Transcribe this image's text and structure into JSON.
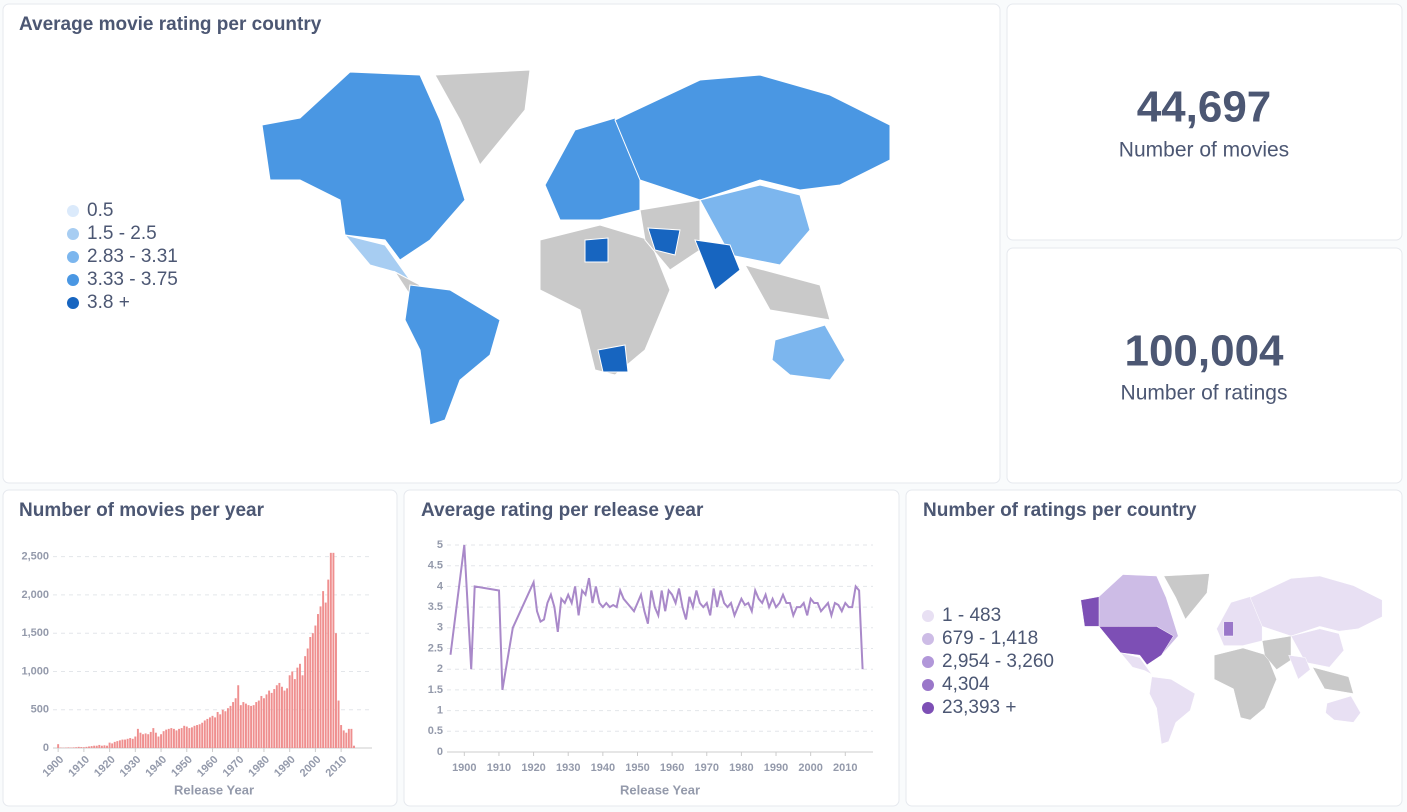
{
  "map_card": {
    "title": "Average movie rating per country",
    "legend": [
      {
        "label": "0.5",
        "color": "#dbeafb"
      },
      {
        "label": "1.5 - 2.5",
        "color": "#a7cdf2"
      },
      {
        "label": "2.83 - 3.31",
        "color": "#7cb6ee"
      },
      {
        "label": "3.33 - 3.75",
        "color": "#4a97e3"
      },
      {
        "label": "3.8 +",
        "color": "#1765c0"
      }
    ]
  },
  "stats": [
    {
      "value": "44,697",
      "label": "Number of movies"
    },
    {
      "value": "100,004",
      "label": "Number of ratings"
    }
  ],
  "chart_data": [
    {
      "type": "bar",
      "title": "Number of movies per year",
      "x_label": "Release Year",
      "color": "#ef8f8f",
      "grid": true,
      "x": [
        1900,
        1901,
        1902,
        1903,
        1904,
        1905,
        1906,
        1907,
        1908,
        1909,
        1910,
        1911,
        1912,
        1913,
        1914,
        1915,
        1916,
        1917,
        1918,
        1919,
        1920,
        1921,
        1922,
        1923,
        1924,
        1925,
        1926,
        1927,
        1928,
        1929,
        1930,
        1931,
        1932,
        1933,
        1934,
        1935,
        1936,
        1937,
        1938,
        1939,
        1940,
        1941,
        1942,
        1943,
        1944,
        1945,
        1946,
        1947,
        1948,
        1949,
        1950,
        1951,
        1952,
        1953,
        1954,
        1955,
        1956,
        1957,
        1958,
        1959,
        1960,
        1961,
        1962,
        1963,
        1964,
        1965,
        1966,
        1967,
        1968,
        1969,
        1970,
        1971,
        1972,
        1973,
        1974,
        1975,
        1976,
        1977,
        1978,
        1979,
        1980,
        1981,
        1982,
        1983,
        1984,
        1985,
        1986,
        1987,
        1988,
        1989,
        1990,
        1991,
        1992,
        1993,
        1994,
        1995,
        1996,
        1997,
        1998,
        1999,
        2000,
        2001,
        2002,
        2003,
        2004,
        2005,
        2006,
        2007,
        2008,
        2009,
        2010,
        2011,
        2012,
        2013,
        2014,
        2015
      ],
      "values": [
        50,
        5,
        3,
        5,
        8,
        5,
        8,
        10,
        15,
        12,
        10,
        15,
        20,
        25,
        30,
        30,
        40,
        30,
        35,
        30,
        70,
        60,
        80,
        90,
        100,
        110,
        110,
        120,
        130,
        120,
        150,
        250,
        200,
        180,
        190,
        180,
        210,
        260,
        200,
        150,
        180,
        220,
        240,
        250,
        260,
        250,
        230,
        250,
        260,
        290,
        280,
        260,
        270,
        290,
        300,
        310,
        330,
        360,
        380,
        400,
        420,
        400,
        470,
        440,
        500,
        480,
        520,
        550,
        600,
        650,
        820,
        560,
        600,
        580,
        560,
        550,
        560,
        600,
        620,
        680,
        650,
        700,
        750,
        720,
        770,
        820,
        850,
        800,
        750,
        780,
        950,
        1000,
        900,
        1050,
        1100,
        950,
        1200,
        1300,
        1450,
        1500,
        1600,
        1750,
        1850,
        2050,
        1900,
        2200,
        2550,
        2550,
        1500,
        620,
        300,
        230,
        200,
        250,
        250,
        30
      ],
      "xlim": [
        1898,
        2022
      ],
      "ylim": [
        0,
        2600
      ],
      "xticks": [
        1900,
        1910,
        1920,
        1930,
        1940,
        1950,
        1960,
        1970,
        1980,
        1990,
        2000,
        2010
      ],
      "yticks": [
        0,
        500,
        {
          "value": 1000,
          "label": "1,000"
        },
        {
          "value": 1500,
          "label": "1,500"
        },
        {
          "value": 2000,
          "label": "2,000"
        },
        {
          "value": 2500,
          "label": "2,500"
        }
      ]
    },
    {
      "type": "line",
      "title": "Average rating per release year",
      "x_label": "Release Year",
      "color": "#a989c9",
      "grid": true,
      "x": [
        1896,
        1900,
        1902,
        1903,
        1910,
        1911,
        1914,
        1920,
        1921,
        1922,
        1923,
        1924,
        1925,
        1926,
        1927,
        1928,
        1929,
        1930,
        1931,
        1932,
        1933,
        1934,
        1935,
        1936,
        1937,
        1938,
        1939,
        1940,
        1941,
        1942,
        1943,
        1944,
        1945,
        1946,
        1947,
        1948,
        1949,
        1950,
        1951,
        1952,
        1953,
        1954,
        1955,
        1956,
        1957,
        1958,
        1959,
        1960,
        1961,
        1962,
        1963,
        1964,
        1965,
        1966,
        1967,
        1968,
        1969,
        1970,
        1971,
        1972,
        1973,
        1974,
        1975,
        1976,
        1977,
        1978,
        1979,
        1980,
        1981,
        1982,
        1983,
        1984,
        1985,
        1986,
        1987,
        1988,
        1989,
        1990,
        1991,
        1992,
        1993,
        1994,
        1995,
        1996,
        1997,
        1998,
        1999,
        2000,
        2001,
        2002,
        2003,
        2004,
        2005,
        2006,
        2007,
        2008,
        2009,
        2010,
        2011,
        2012,
        2013,
        2014,
        2015
      ],
      "values": [
        2.35,
        5,
        2.0,
        4.0,
        3.9,
        1.5,
        3.0,
        4.1,
        3.4,
        3.15,
        3.2,
        3.6,
        3.8,
        3.5,
        2.9,
        3.7,
        3.6,
        3.8,
        3.6,
        4.0,
        3.3,
        3.9,
        3.8,
        4.2,
        3.6,
        4.0,
        3.6,
        3.5,
        3.6,
        3.5,
        3.55,
        3.5,
        3.9,
        3.7,
        3.6,
        3.5,
        3.4,
        3.6,
        3.8,
        3.4,
        3.1,
        3.9,
        3.5,
        3.3,
        3.9,
        3.4,
        3.9,
        3.8,
        3.6,
        3.95,
        3.5,
        3.2,
        3.75,
        3.5,
        3.9,
        3.6,
        3.5,
        3.6,
        3.3,
        3.95,
        3.5,
        3.9,
        3.6,
        3.5,
        3.6,
        3.3,
        3.5,
        3.7,
        3.55,
        3.6,
        3.4,
        3.9,
        3.7,
        3.6,
        3.8,
        3.5,
        3.7,
        3.5,
        3.6,
        3.8,
        3.6,
        3.6,
        3.3,
        3.5,
        3.5,
        3.6,
        3.3,
        3.7,
        3.6,
        3.6,
        3.4,
        3.5,
        3.6,
        3.3,
        3.6,
        3.55,
        3.4,
        3.6,
        3.5,
        3.5,
        4.0,
        3.9,
        2.0
      ],
      "xlim": [
        1895,
        2018
      ],
      "ylim": [
        0,
        5
      ],
      "xticks": [
        1900,
        1910,
        1920,
        1930,
        1940,
        1950,
        1960,
        1970,
        1980,
        1990,
        2000,
        2010
      ],
      "yticks": [
        0,
        0.5,
        1,
        1.5,
        2,
        2.5,
        3,
        3.5,
        4,
        4.5,
        5
      ]
    }
  ],
  "ratings_card": {
    "title": "Number of ratings per country",
    "legend": [
      {
        "label": "1 - 483",
        "color": "#e8e0f3"
      },
      {
        "label": "679 - 1,418",
        "color": "#cdbce6"
      },
      {
        "label": "2,954 - 3,260",
        "color": "#b197d9"
      },
      {
        "label": "4,304",
        "color": "#9a77c9"
      },
      {
        "label": "23,393 +",
        "color": "#7d4fb5"
      }
    ]
  }
}
